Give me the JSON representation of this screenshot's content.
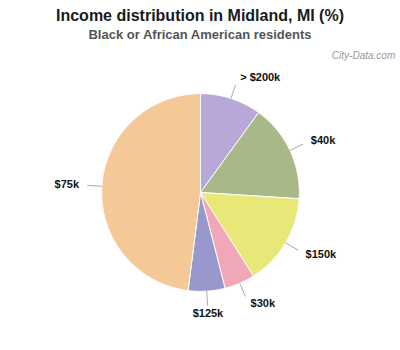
{
  "chart_data": {
    "type": "pie",
    "title": "Income distribution in Midland, MI (%)",
    "subtitle": "Black or African American residents",
    "categories": [
      "> $200k",
      "$40k",
      "$150k",
      "$30k",
      "$125k",
      "$75k"
    ],
    "values": [
      10,
      16,
      15,
      5,
      6,
      48
    ],
    "colors": [
      "#b8a8d8",
      "#a8b888",
      "#e8e878",
      "#f0a8b8",
      "#9898cc",
      "#f5c898"
    ],
    "annotations": [
      "City-Data.com"
    ]
  }
}
